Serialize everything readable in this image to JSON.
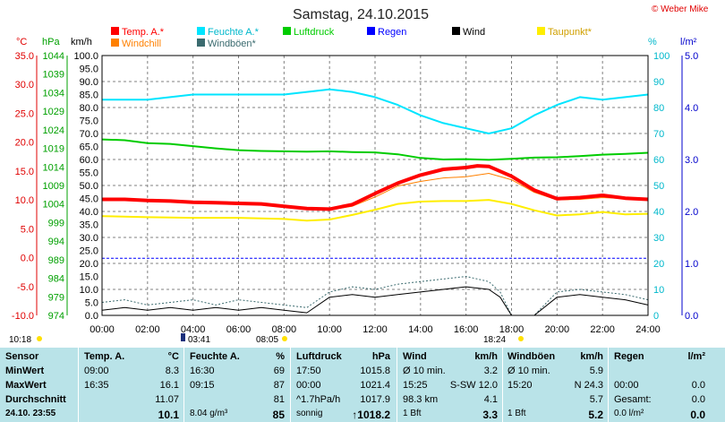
{
  "title": "Samstag, 24.10.2015",
  "credit": "© Weber Mike",
  "colors": {
    "temp": "#ff0000",
    "windchill": "#ff8000",
    "humidity": "#00e5ff",
    "gust": "#3b6b6f",
    "pressure": "#00cc00",
    "rain": "#0000ff",
    "wind": "#000000",
    "dewpoint": "#ffee00",
    "grid": "#808080",
    "stats_bg": "#b9e3e8"
  },
  "legend": [
    {
      "label": "Temp. A.*",
      "color": "#ff0000"
    },
    {
      "label": "Feuchte A.*",
      "color": "#00e5ff"
    },
    {
      "label": "Luftdruck",
      "color": "#00cc00"
    },
    {
      "label": "Regen",
      "color": "#0000ff"
    },
    {
      "label": "Wind",
      "color": "#000000"
    },
    {
      "label": "Taupunkt*",
      "color": "#ffee00"
    },
    {
      "label": "Windchill",
      "color": "#ff8000"
    },
    {
      "label": "Windböen*",
      "color": "#3b6b6f"
    }
  ],
  "axis_units": {
    "temp": "°C",
    "pressure": "hPa",
    "wind": "km/h",
    "humidity": "%",
    "rain": "l/m²"
  },
  "axis_ticks": {
    "temp": [
      "35.0",
      "30.0",
      "25.0",
      "20.0",
      "15.0",
      "10.0",
      "5.0",
      "0.0",
      "-5.0",
      "-10.0"
    ],
    "pressure": [
      "1044",
      "1039",
      "1034",
      "1029",
      "1024",
      "1019",
      "1014",
      "1009",
      "1004",
      "999",
      "994",
      "989",
      "984",
      "979",
      "974"
    ],
    "wind": [
      "100.0",
      "95.0",
      "90.0",
      "85.0",
      "80.0",
      "75.0",
      "70.0",
      "65.0",
      "60.0",
      "55.0",
      "50.0",
      "45.0",
      "40.0",
      "35.0",
      "30.0",
      "25.0",
      "20.0",
      "15.0",
      "10.0",
      "5.0",
      "0.0"
    ],
    "humidity": [
      "100",
      "90",
      "80",
      "70",
      "60",
      "50",
      "40",
      "30",
      "20",
      "10",
      "0"
    ],
    "rain": [
      "5.0",
      "4.0",
      "3.0",
      "2.0",
      "1.0",
      "0.0"
    ],
    "time": [
      "00:00",
      "02:00",
      "04:00",
      "06:00",
      "08:00",
      "10:00",
      "12:00",
      "14:00",
      "16:00",
      "18:00",
      "20:00",
      "22:00",
      "24:00"
    ]
  },
  "sun": {
    "moonrise": "10:18",
    "sunrise": "03:41",
    "morning": "08:05",
    "noon": "18:24"
  },
  "chart_data": {
    "type": "line",
    "x_label": "",
    "x_range": [
      0,
      24
    ],
    "series": [
      {
        "name": "Temp. A.*",
        "axis": "temp",
        "x": [
          0,
          1,
          2,
          3,
          4,
          5,
          6,
          7,
          8,
          9,
          10,
          11,
          12,
          13,
          14,
          15,
          16,
          16.5,
          17,
          18,
          19,
          20,
          21,
          22,
          23,
          24
        ],
        "y": [
          10.1,
          10.1,
          9.9,
          9.8,
          9.6,
          9.5,
          9.4,
          9.3,
          8.9,
          8.5,
          8.4,
          9.2,
          11.1,
          12.9,
          14.3,
          15.3,
          15.6,
          15.9,
          15.8,
          14.1,
          11.7,
          10.2,
          10.4,
          10.8,
          10.3,
          10.1
        ]
      },
      {
        "name": "Windchill",
        "axis": "temp",
        "x": [
          0,
          2,
          4,
          6,
          8,
          9,
          10,
          11,
          12,
          13,
          14,
          15,
          16,
          17,
          18,
          19,
          20,
          21,
          22,
          23,
          24
        ],
        "y": [
          10.1,
          9.9,
          9.6,
          9.4,
          9.0,
          8.4,
          8.3,
          8.9,
          10.5,
          12.4,
          13.2,
          13.8,
          14.0,
          14.6,
          13.5,
          11.3,
          10.0,
          10.1,
          10.4,
          10.2,
          10.0
        ]
      },
      {
        "name": "Feuchte A.*",
        "axis": "humidity",
        "x": [
          0,
          2,
          3,
          4,
          6,
          8,
          9,
          10,
          11,
          12,
          13,
          14,
          15,
          16,
          17,
          18,
          19,
          20,
          21,
          22,
          23,
          24
        ],
        "y": [
          83,
          83,
          84,
          85,
          85,
          85,
          86,
          87,
          86,
          84,
          81,
          77,
          74,
          72,
          70,
          72,
          77,
          81,
          84,
          83,
          84,
          85
        ]
      },
      {
        "name": "Luftdruck",
        "axis": "pressure",
        "x": [
          0,
          1,
          2,
          3,
          4,
          5,
          6,
          7,
          8,
          9,
          10,
          11,
          12,
          13,
          14,
          15,
          16,
          17,
          18,
          19,
          20,
          21,
          22,
          23,
          24
        ],
        "y": [
          1021.4,
          1021.2,
          1020.4,
          1020.2,
          1019.6,
          1019.0,
          1018.5,
          1018.3,
          1018.2,
          1018.1,
          1018.2,
          1018.0,
          1017.9,
          1017.4,
          1016.4,
          1016.0,
          1016.1,
          1015.9,
          1016.2,
          1016.5,
          1016.6,
          1016.9,
          1017.3,
          1017.5,
          1017.8
        ]
      },
      {
        "name": "Regen",
        "axis": "rain",
        "x": [
          0,
          24
        ],
        "y": [
          1.1,
          1.1
        ]
      },
      {
        "name": "Taupunkt*",
        "axis": "temp",
        "x": [
          0,
          2,
          4,
          6,
          8,
          9,
          10,
          11,
          12,
          13,
          14,
          15,
          16,
          17,
          18,
          19,
          20,
          21,
          22,
          23,
          24
        ],
        "y": [
          7.2,
          7.0,
          6.9,
          6.9,
          6.7,
          6.4,
          6.6,
          7.4,
          8.3,
          9.3,
          9.7,
          9.8,
          9.8,
          10.0,
          9.3,
          8.2,
          7.3,
          7.5,
          7.9,
          7.5,
          7.6
        ]
      },
      {
        "name": "Wind",
        "axis": "wind",
        "x": [
          0,
          1,
          2,
          3,
          4,
          5,
          6,
          7,
          8,
          9,
          10,
          11,
          12,
          13,
          14,
          15,
          16,
          17,
          17.5,
          18,
          19,
          20,
          21,
          22,
          23,
          24
        ],
        "y": [
          2,
          3,
          2,
          3,
          2,
          3,
          2,
          3,
          2,
          1,
          7,
          8,
          7,
          8,
          9,
          10,
          11,
          10,
          7,
          0,
          0,
          7,
          8,
          7,
          6,
          4
        ]
      },
      {
        "name": "Windböen*",
        "axis": "wind",
        "x": [
          0,
          1,
          2,
          3,
          4,
          5,
          6,
          7,
          8,
          9,
          10,
          11,
          12,
          13,
          14,
          15,
          16,
          17,
          17.5,
          18,
          19,
          20,
          21,
          22,
          23,
          24
        ],
        "y": [
          5,
          6,
          4,
          5,
          6,
          4,
          6,
          5,
          4,
          3,
          9,
          11,
          10,
          12,
          13,
          14,
          15,
          13,
          9,
          0,
          0,
          9,
          10,
          9,
          8,
          6
        ]
      }
    ]
  },
  "stats": {
    "rows": [
      [
        "Sensor",
        "Temp. A.",
        "°C",
        "Feuchte A.",
        "%",
        "Luftdruck",
        "hPa",
        "Wind",
        "km/h",
        "Windböen",
        "km/h",
        "Regen",
        "l/m²"
      ],
      [
        "MinWert",
        "09:00",
        "8.3",
        "16:30",
        "69",
        "17:50",
        "1015.8",
        "Ø 10 min.",
        "3.2",
        "Ø 10 min.",
        "5.9",
        "",
        ""
      ],
      [
        "MaxWert",
        "16:35",
        "16.1",
        "09:15",
        "87",
        "00:00",
        "1021.4",
        "15:25",
        "S-SW 12.0",
        "15:20",
        "N 24.3",
        "00:00",
        "0.0"
      ],
      [
        "Durchschnitt",
        "",
        "11.07",
        "",
        "81",
        "^1.7hPa/h",
        "1017.9",
        "98.3 km",
        "4.1",
        "",
        "5.7",
        "Gesamt:",
        "0.0"
      ],
      [
        "24.10. 23:55",
        "",
        "10.1",
        "8.04 g/m³",
        "85",
        "sonnig",
        "↑1018.2",
        "1 Bft",
        "3.3",
        "1 Bft",
        "5.2",
        "0.0 l/m²",
        "0.0"
      ]
    ]
  }
}
